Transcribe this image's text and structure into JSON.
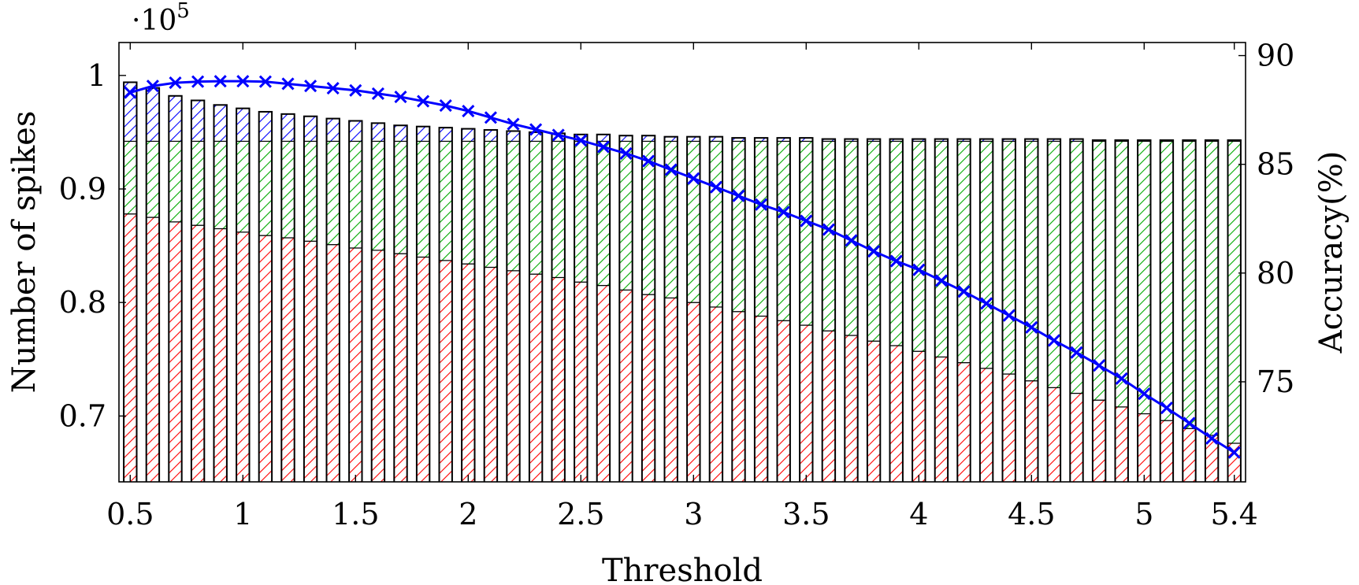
{
  "chart_data": {
    "type": "bar",
    "stacked": true,
    "grid": false,
    "x": [
      0.5,
      0.6,
      0.7,
      0.8,
      0.9,
      1.0,
      1.1,
      1.2,
      1.3,
      1.4,
      1.5,
      1.6,
      1.7,
      1.8,
      1.9,
      2.0,
      2.1,
      2.2,
      2.3,
      2.4,
      2.5,
      2.6,
      2.7,
      2.8,
      2.9,
      3.0,
      3.1,
      3.2,
      3.3,
      3.4,
      3.5,
      3.6,
      3.7,
      3.8,
      3.9,
      4.0,
      4.1,
      4.2,
      4.3,
      4.4,
      4.5,
      4.6,
      4.7,
      4.8,
      4.9,
      5.0,
      5.1,
      5.2,
      5.3,
      5.4
    ],
    "xlabel": "Threshold",
    "xticks": [
      "0.5",
      "1",
      "1.5",
      "2",
      "2.5",
      "3",
      "3.5",
      "4",
      "4.5",
      "5",
      "5.4"
    ],
    "xtick_values": [
      0.5,
      1,
      1.5,
      2,
      2.5,
      3,
      3.5,
      4,
      4.5,
      5,
      5.4
    ],
    "xlim": [
      0.45,
      5.45
    ],
    "ylabel_left": "Number of spikes",
    "y_multiplier": "·10",
    "y_multiplier_exponent": "5",
    "ylim_left": [
      0.642,
      1.029
    ],
    "yticks_left": [
      "0.7",
      "0.8",
      "0.9",
      "1"
    ],
    "ytick_values_left": [
      0.7,
      0.8,
      0.9,
      1.0
    ],
    "ylabel_right": "Accuracy(%)",
    "ylim_right": [
      70.4,
      90.6
    ],
    "yticks_right": [
      "75",
      "80",
      "85",
      "90"
    ],
    "ytick_values_right": [
      75,
      80,
      85,
      90
    ],
    "series": [
      {
        "kind": "bar",
        "color": "#ff0000",
        "pattern": "hatch",
        "values": [
          0.878,
          0.875,
          0.871,
          0.868,
          0.865,
          0.862,
          0.859,
          0.857,
          0.854,
          0.851,
          0.848,
          0.846,
          0.843,
          0.84,
          0.837,
          0.834,
          0.831,
          0.828,
          0.825,
          0.822,
          0.818,
          0.815,
          0.811,
          0.807,
          0.804,
          0.8,
          0.796,
          0.792,
          0.788,
          0.784,
          0.78,
          0.775,
          0.771,
          0.766,
          0.762,
          0.757,
          0.752,
          0.747,
          0.742,
          0.737,
          0.731,
          0.725,
          0.72,
          0.714,
          0.708,
          0.702,
          0.696,
          0.689,
          0.683,
          0.676
        ]
      },
      {
        "kind": "bar",
        "color": "#00aa00",
        "pattern": "hatch",
        "values": [
          0.064,
          0.067,
          0.071,
          0.074,
          0.077,
          0.08,
          0.083,
          0.085,
          0.088,
          0.091,
          0.094,
          0.096,
          0.099,
          0.102,
          0.105,
          0.108,
          0.111,
          0.114,
          0.117,
          0.12,
          0.124,
          0.127,
          0.131,
          0.135,
          0.138,
          0.142,
          0.146,
          0.15,
          0.154,
          0.158,
          0.162,
          0.167,
          0.171,
          0.176,
          0.18,
          0.185,
          0.19,
          0.195,
          0.2,
          0.205,
          0.211,
          0.217,
          0.222,
          0.228,
          0.234,
          0.24,
          0.246,
          0.253,
          0.259,
          0.266
        ]
      },
      {
        "kind": "bar",
        "color": "#0000ff",
        "pattern": "hatch",
        "values": [
          0.052,
          0.047,
          0.04,
          0.036,
          0.032,
          0.029,
          0.026,
          0.024,
          0.022,
          0.02,
          0.018,
          0.016,
          0.014,
          0.013,
          0.012,
          0.011,
          0.01,
          0.009,
          0.008,
          0.007,
          0.006,
          0.006,
          0.005,
          0.005,
          0.004,
          0.004,
          0.004,
          0.003,
          0.003,
          0.003,
          0.003,
          0.002,
          0.002,
          0.002,
          0.002,
          0.002,
          0.002,
          0.002,
          0.002,
          0.002,
          0.002,
          0.002,
          0.002,
          0.001,
          0.001,
          0.001,
          0.001,
          0.001,
          0.001,
          0.001
        ]
      },
      {
        "kind": "line",
        "axis": "right",
        "color": "#0000ff",
        "marker": "x",
        "values": [
          88.3,
          88.6,
          88.75,
          88.8,
          88.82,
          88.82,
          88.8,
          88.7,
          88.6,
          88.5,
          88.4,
          88.25,
          88.1,
          87.9,
          87.7,
          87.45,
          87.15,
          86.85,
          86.6,
          86.35,
          86.1,
          85.8,
          85.5,
          85.15,
          84.75,
          84.35,
          83.95,
          83.55,
          83.15,
          82.8,
          82.4,
          82.0,
          81.5,
          81.0,
          80.55,
          80.15,
          79.65,
          79.15,
          78.6,
          78.05,
          77.5,
          76.9,
          76.35,
          75.75,
          75.15,
          74.45,
          73.8,
          73.1,
          72.4,
          71.75
        ]
      }
    ]
  }
}
